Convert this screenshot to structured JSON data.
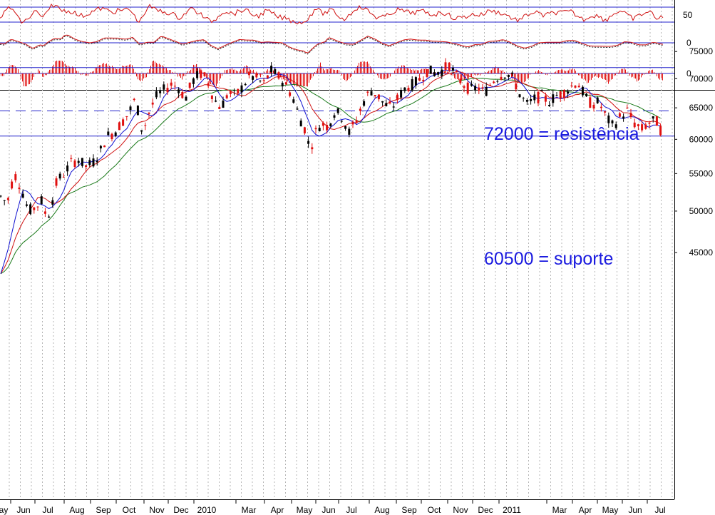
{
  "chart_data": {
    "type": "candlestick",
    "scale": "log",
    "ylim": [
      40000,
      77000
    ],
    "y_ticks": [
      45000,
      50000,
      55000,
      60000,
      65000,
      70000,
      75000
    ],
    "grid": "vertical-dotted",
    "x_ticks": [
      "ay",
      "Jun",
      "Jul",
      "Aug",
      "Sep",
      "Oct",
      "Nov",
      "Dec",
      "2010",
      "Mar",
      "Apr",
      "May",
      "Jun",
      "Jul",
      "Aug",
      "Sep",
      "Oct",
      "Nov",
      "Dec",
      "2011",
      "Mar",
      "Apr",
      "May",
      "Jun",
      "Jul"
    ],
    "levels": [
      {
        "value": 72000,
        "style": "solid",
        "label": "72000 = resistência"
      },
      {
        "value": 64500,
        "style": "dashed",
        "label": ""
      },
      {
        "value": 60500,
        "style": "solid",
        "label": "60500 = suporte"
      }
    ],
    "price_points": [
      [
        0,
        52000
      ],
      [
        10,
        51000
      ],
      [
        20,
        55000
      ],
      [
        30,
        53000
      ],
      [
        40,
        50000
      ],
      [
        50,
        50500
      ],
      [
        60,
        51500
      ],
      [
        65,
        49000
      ],
      [
        70,
        50000
      ],
      [
        80,
        54000
      ],
      [
        90,
        55000
      ],
      [
        100,
        56500
      ],
      [
        110,
        57000
      ],
      [
        120,
        56000
      ],
      [
        130,
        56500
      ],
      [
        140,
        58000
      ],
      [
        150,
        60500
      ],
      [
        160,
        61000
      ],
      [
        170,
        62500
      ],
      [
        180,
        64000
      ],
      [
        190,
        66500
      ],
      [
        200,
        61000
      ],
      [
        210,
        64500
      ],
      [
        220,
        67000
      ],
      [
        230,
        68000
      ],
      [
        240,
        69000
      ],
      [
        250,
        68500
      ],
      [
        260,
        66500
      ],
      [
        270,
        69500
      ],
      [
        280,
        71000
      ],
      [
        290,
        70000
      ],
      [
        300,
        66500
      ],
      [
        310,
        65000
      ],
      [
        320,
        67500
      ],
      [
        330,
        67000
      ],
      [
        340,
        68500
      ],
      [
        350,
        70500
      ],
      [
        360,
        70000
      ],
      [
        370,
        69000
      ],
      [
        380,
        71500
      ],
      [
        390,
        70500
      ],
      [
        400,
        69000
      ],
      [
        410,
        67000
      ],
      [
        420,
        63500
      ],
      [
        430,
        61000
      ],
      [
        435,
        58000
      ],
      [
        440,
        60500
      ],
      [
        450,
        62500
      ],
      [
        460,
        62000
      ],
      [
        470,
        64500
      ],
      [
        480,
        63500
      ],
      [
        490,
        61000
      ],
      [
        500,
        63000
      ],
      [
        510,
        66000
      ],
      [
        520,
        68000
      ],
      [
        530,
        67000
      ],
      [
        540,
        65500
      ],
      [
        550,
        65000
      ],
      [
        560,
        67000
      ],
      [
        570,
        68500
      ],
      [
        580,
        69000
      ],
      [
        590,
        70000
      ],
      [
        600,
        71500
      ],
      [
        610,
        71000
      ],
      [
        620,
        71500
      ],
      [
        630,
        72500
      ],
      [
        640,
        70500
      ],
      [
        650,
        69000
      ],
      [
        660,
        68000
      ],
      [
        670,
        68500
      ],
      [
        680,
        67500
      ],
      [
        690,
        69500
      ],
      [
        700,
        70500
      ],
      [
        710,
        71000
      ],
      [
        720,
        70000
      ],
      [
        730,
        67000
      ],
      [
        740,
        65500
      ],
      [
        750,
        66500
      ],
      [
        760,
        67000
      ],
      [
        770,
        66000
      ],
      [
        780,
        67000
      ],
      [
        790,
        67500
      ],
      [
        800,
        68500
      ],
      [
        810,
        69500
      ],
      [
        820,
        67000
      ],
      [
        830,
        65500
      ],
      [
        840,
        66000
      ],
      [
        850,
        63500
      ],
      [
        860,
        62000
      ],
      [
        870,
        63500
      ],
      [
        880,
        64500
      ],
      [
        890,
        62500
      ],
      [
        900,
        61500
      ],
      [
        910,
        62500
      ],
      [
        920,
        63000
      ],
      [
        925,
        62000
      ],
      [
        930,
        60500
      ]
    ],
    "oscillator_ticks": [
      {
        "panel": 1,
        "label": "50"
      },
      {
        "panel": 2,
        "label": "0"
      },
      {
        "panel": 3,
        "label": "0"
      }
    ]
  }
}
